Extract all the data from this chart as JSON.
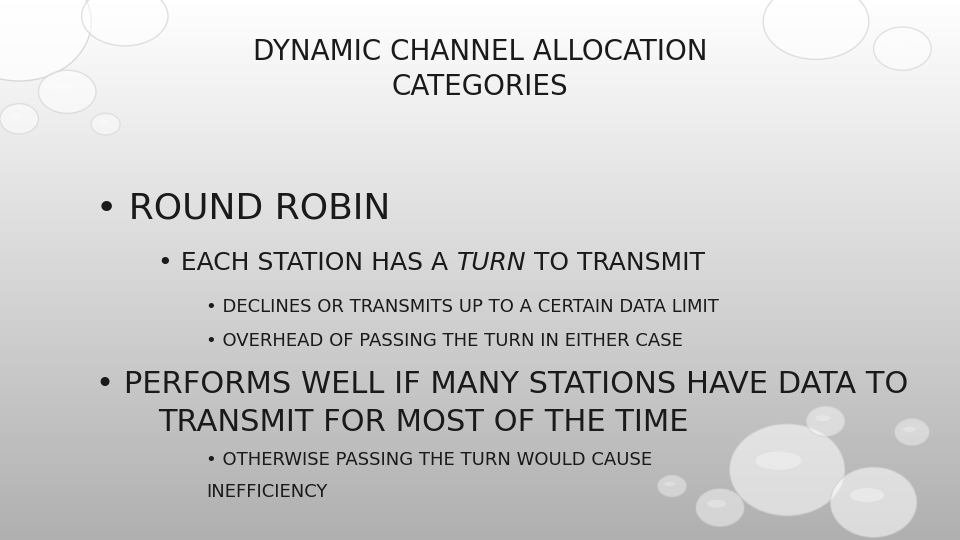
{
  "title_line1": "DYNAMIC CHANNEL ALLOCATION",
  "title_line2": "CATEGORIES",
  "title_fontsize": 20,
  "title_color": "#1a1a1a",
  "bullet1": "ROUND ROBIN",
  "bullet1_fontsize": 26,
  "bullet2_prefix": "• EACH STATION HAS A ",
  "bullet2_italic": "TURN",
  "bullet2_suffix": " TO TRANSMIT",
  "bullet2_fontsize": 18,
  "bullet3a": "• DECLINES OR TRANSMITS UP TO A CERTAIN DATA LIMIT",
  "bullet3b": "• OVERHEAD OF PASSING THE TURN IN EITHER CASE",
  "bullet3_fontsize": 13,
  "bullet4_line1": "• PERFORMS WELL IF MANY STATIONS HAVE DATA TO",
  "bullet4_line2": "TRANSMIT FOR MOST OF THE TIME",
  "bullet4_fontsize": 22,
  "bullet5_line1": "• OTHERWISE PASSING THE TURN WOULD CAUSE",
  "bullet5_line2": "INEFFICIENCY",
  "bullet5_fontsize": 13,
  "text_color": "#1a1a1a",
  "bg_gradient_top": "#ffffff",
  "bg_gradient_bottom": "#b0b0b0",
  "drop_color": "#ffffff",
  "drop_edge": "#d0d0d0",
  "drops_topleft": [
    [
      0.02,
      0.96,
      0.075,
      0.11,
      0.7
    ],
    [
      0.13,
      0.97,
      0.045,
      0.055,
      0.6
    ],
    [
      0.07,
      0.83,
      0.03,
      0.04,
      0.55
    ],
    [
      0.02,
      0.78,
      0.02,
      0.028,
      0.5
    ],
    [
      0.11,
      0.77,
      0.015,
      0.02,
      0.45
    ]
  ],
  "drops_topright": [
    [
      0.85,
      0.96,
      0.055,
      0.07,
      0.6
    ],
    [
      0.94,
      0.91,
      0.03,
      0.04,
      0.55
    ]
  ],
  "drops_bottomright": [
    [
      0.82,
      0.13,
      0.06,
      0.085,
      0.55
    ],
    [
      0.91,
      0.07,
      0.045,
      0.065,
      0.55
    ],
    [
      0.75,
      0.06,
      0.025,
      0.035,
      0.45
    ],
    [
      0.86,
      0.22,
      0.02,
      0.028,
      0.45
    ],
    [
      0.7,
      0.1,
      0.015,
      0.02,
      0.4
    ],
    [
      0.95,
      0.2,
      0.018,
      0.025,
      0.4
    ]
  ]
}
